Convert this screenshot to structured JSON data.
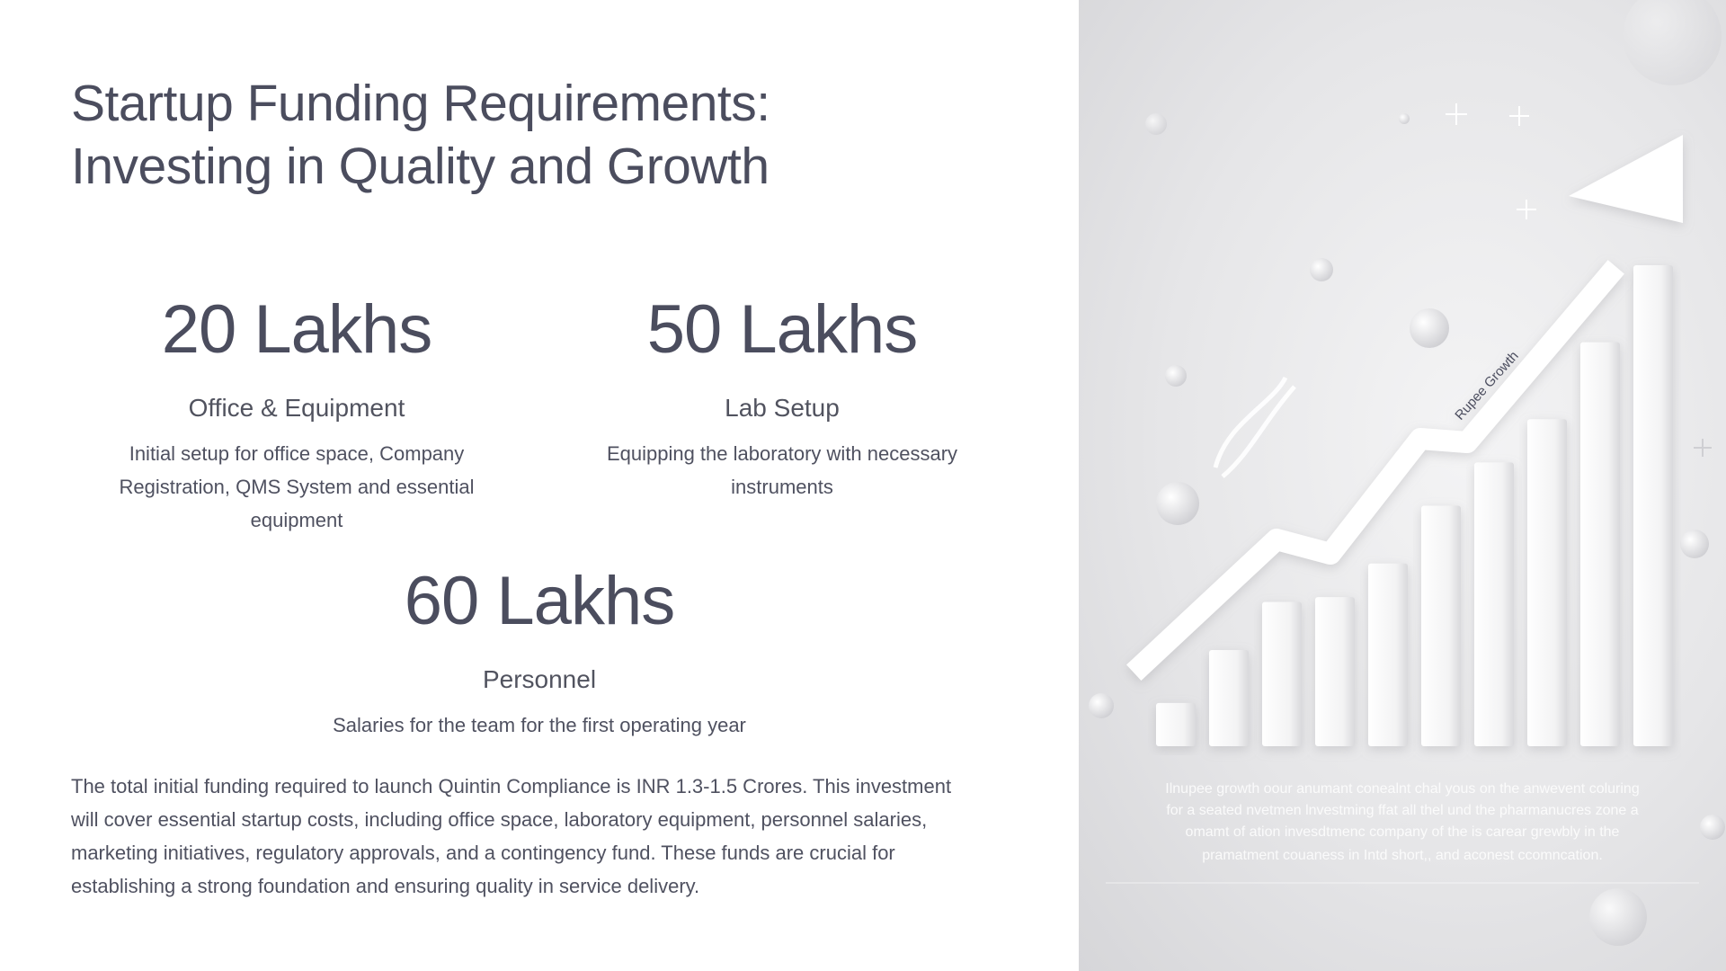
{
  "slide": {
    "title_line1": "Startup Funding Requirements:",
    "title_line2": "Investing in Quality and Growth"
  },
  "cards": [
    {
      "amount": "20 Lakhs",
      "label": "Office & Equipment",
      "desc_line1": "Initial setup for office space, Company",
      "desc_line2": "Registration, QMS System and essential",
      "desc_line3": "equipment"
    },
    {
      "amount": "50 Lakhs",
      "label": "Lab Setup",
      "desc_line1": "Equipping the laboratory with necessary",
      "desc_line2": "instruments"
    },
    {
      "amount": "60 Lakhs",
      "label": "Personnel",
      "desc_line1": "Salaries for the team for the first operating year"
    }
  ],
  "summary": {
    "line1": "The total initial funding required to launch Quintin Compliance is INR 1.3-1.5 Crores. This investment",
    "line2": "will cover essential startup costs, including office space, laboratory equipment, personnel salaries,",
    "line3": "marketing initiatives, regulatory approvals, and a contingency fund. These funds are crucial for",
    "line4": "establishing a strong foundation and ensuring quality in service delivery."
  },
  "illustration": {
    "arrow_label": "Rupee Growth",
    "caption_line1": "Ilnupee growth oour anumant conealnt chal yous on the anwevent coluring",
    "caption_line2": "for a seated nvetmen lnvestming ffat all thel und the pharmanucres zone a",
    "caption_line3": "omamt of ation invesdtmenc company of the is carear grewbly in the",
    "caption_line4": "pramatment couaness in Intd short,, and aconest ccomncation.",
    "bar_levels": [
      0.09,
      0.2,
      0.3,
      0.31,
      0.38,
      0.5,
      0.59,
      0.68,
      0.84,
      1.0
    ],
    "colors": {
      "bar": "#fafafa",
      "arrow": "#ffffff",
      "text": "#4b4d5e"
    }
  }
}
